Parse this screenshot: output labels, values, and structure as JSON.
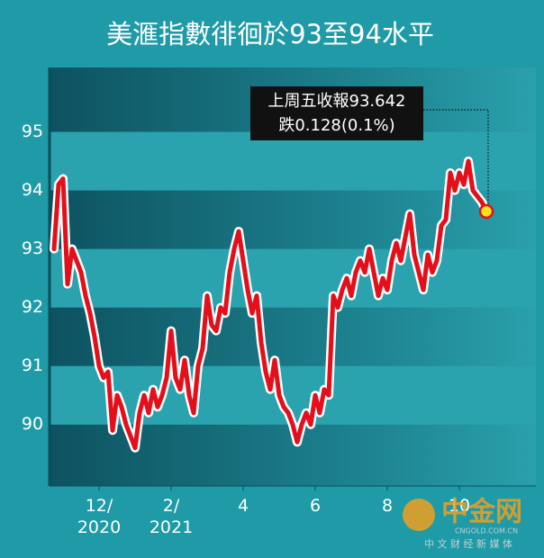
{
  "chart_data": {
    "type": "line",
    "title": "美滙指數徘徊於93至94水平",
    "annotation": [
      "上周五收報93.642",
      "跌0.128(0.1%)"
    ],
    "watermark": [
      "中金网",
      "CNGOLD.COM.CN",
      "中 文 财 经 新 媒 体"
    ],
    "color": "#e3101b",
    "xlim": [
      10.625,
      24.125
    ],
    "xticks": [
      {
        "value": 12,
        "label": "12/\n2020"
      },
      {
        "value": 14,
        "label": "2/\n2021"
      },
      {
        "value": 16,
        "label": "4"
      },
      {
        "value": 18,
        "label": "6"
      },
      {
        "value": 20,
        "label": "8"
      },
      {
        "value": 22,
        "label": "10"
      }
    ],
    "ylim": [
      88.95,
      96.1
    ],
    "yticks": [
      90,
      91,
      92,
      93,
      94,
      95
    ],
    "x": [
      10.75,
      10.875,
      11,
      11.125,
      11.25,
      11.375,
      11.5,
      11.625,
      11.75,
      11.875,
      12,
      12.125,
      12.25,
      12.375,
      12.5,
      12.625,
      12.75,
      12.875,
      13,
      13.125,
      13.25,
      13.375,
      13.5,
      13.625,
      13.75,
      13.875,
      14,
      14.125,
      14.25,
      14.375,
      14.5,
      14.625,
      14.75,
      14.875,
      15,
      15.125,
      15.25,
      15.375,
      15.5,
      15.625,
      15.75,
      15.875,
      16,
      16.125,
      16.25,
      16.375,
      16.5,
      16.625,
      16.75,
      16.875,
      17,
      17.125,
      17.25,
      17.375,
      17.5,
      17.625,
      17.75,
      17.875,
      18,
      18.125,
      18.25,
      18.375,
      18.5,
      18.625,
      18.75,
      18.875,
      19,
      19.125,
      19.25,
      19.375,
      19.5,
      19.625,
      19.75,
      19.875,
      20,
      20.125,
      20.25,
      20.375,
      20.5,
      20.625,
      20.75,
      20.875,
      21,
      21.125,
      21.25,
      21.375,
      21.5,
      21.625,
      21.75,
      21.875,
      22,
      22.125,
      22.25,
      22.375,
      22.5,
      22.625,
      22.75
    ],
    "values": [
      93.0,
      94.1,
      94.2,
      92.4,
      93.0,
      92.8,
      92.6,
      92.2,
      91.9,
      91.5,
      91.0,
      90.8,
      90.9,
      89.9,
      90.5,
      90.3,
      90.0,
      89.8,
      89.6,
      90.2,
      90.5,
      90.2,
      90.6,
      90.3,
      90.5,
      90.8,
      91.6,
      90.8,
      90.6,
      91.1,
      90.5,
      90.2,
      91.0,
      91.3,
      92.2,
      91.7,
      91.6,
      92.0,
      91.9,
      92.6,
      93.0,
      93.3,
      92.8,
      92.3,
      91.9,
      92.2,
      91.4,
      90.9,
      90.6,
      91.1,
      90.5,
      90.3,
      90.2,
      90.0,
      89.7,
      90.0,
      90.2,
      90.0,
      90.5,
      90.2,
      90.6,
      90.5,
      92.2,
      92.0,
      92.3,
      92.5,
      92.2,
      92.6,
      92.8,
      92.6,
      93.0,
      92.6,
      92.2,
      92.5,
      92.3,
      92.8,
      93.1,
      92.8,
      93.2,
      93.6,
      92.9,
      92.6,
      92.3,
      92.9,
      92.6,
      92.8,
      93.4,
      93.5,
      94.3,
      94.0,
      94.3,
      94.1,
      94.5,
      94.0,
      93.9,
      93.8,
      93.642
    ]
  }
}
